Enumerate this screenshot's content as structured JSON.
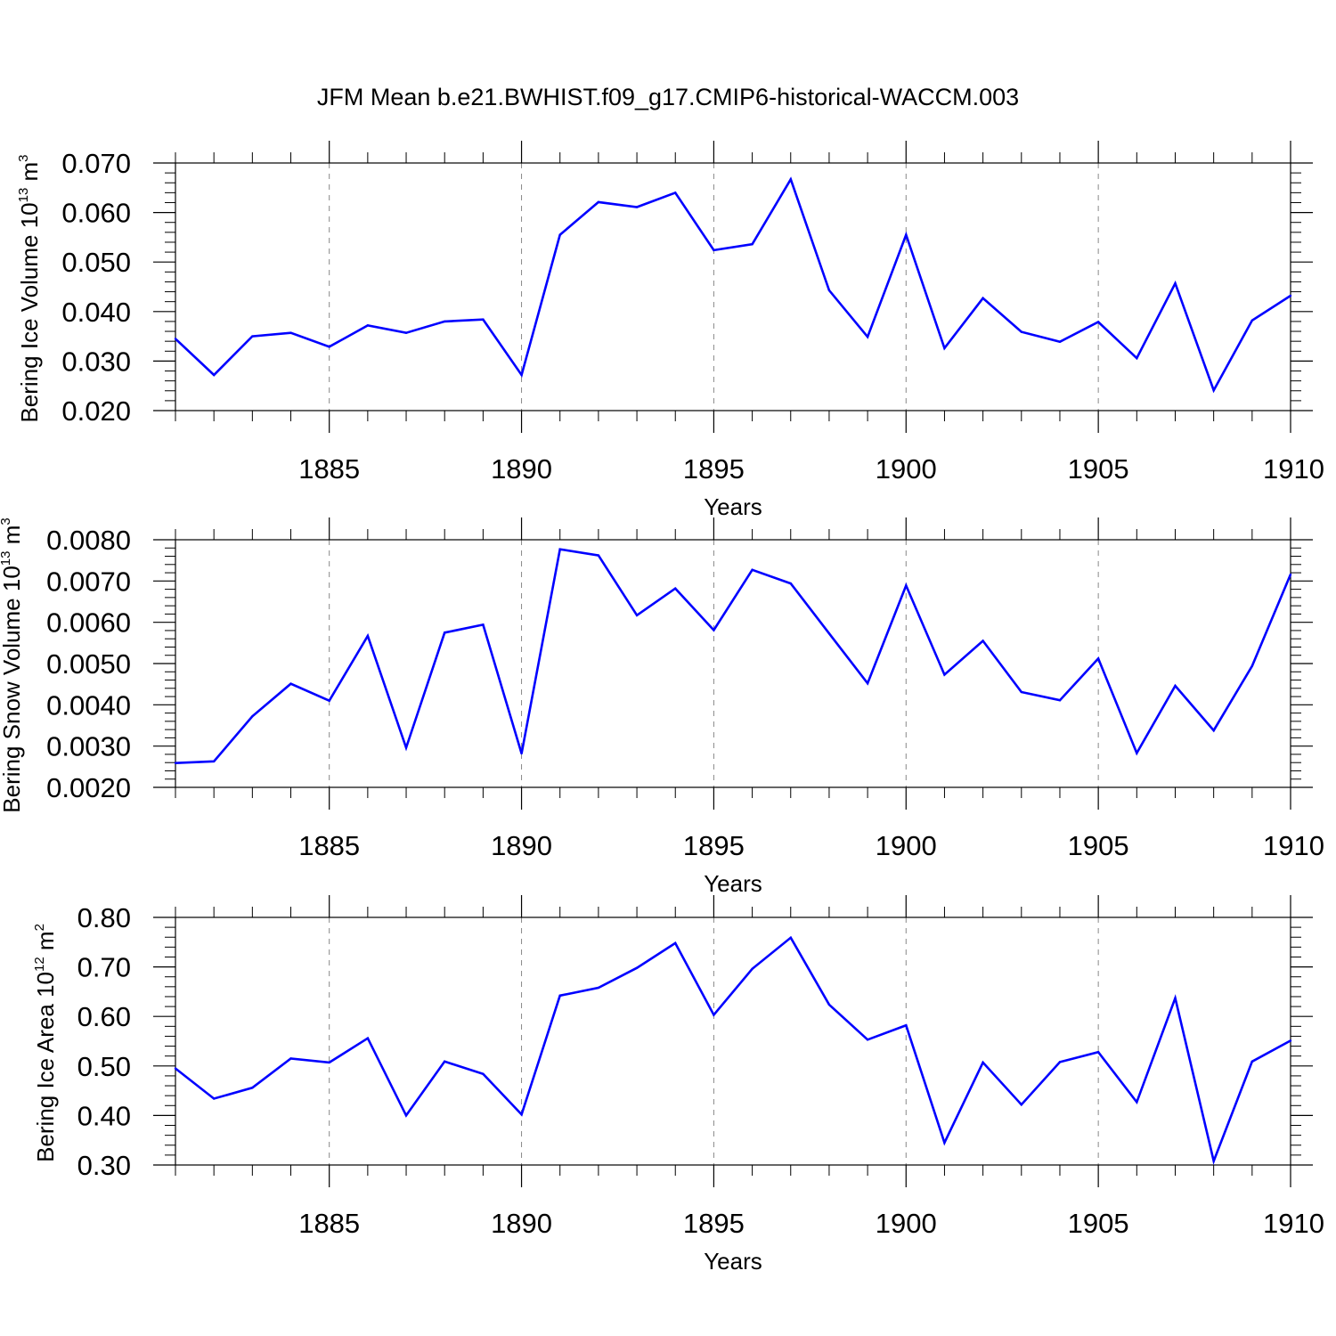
{
  "title": "JFM Mean b.e21.BWHIST.f09_g17.CMIP6-historical-WACCM.003",
  "colors": {
    "line": "#0000ff",
    "axis": "#000000",
    "grid": "#888888"
  },
  "chart_data": [
    {
      "type": "line",
      "name": "ice-volume",
      "ylabel_base": "Bering Ice Volume 10",
      "ylabel_exp": "13",
      "ylabel_unit": " m",
      "ylabel_unit_exp": "3",
      "xlabel": "Years",
      "x": [
        1881,
        1882,
        1883,
        1884,
        1885,
        1886,
        1887,
        1888,
        1889,
        1890,
        1891,
        1892,
        1893,
        1894,
        1895,
        1896,
        1897,
        1898,
        1899,
        1900,
        1901,
        1902,
        1903,
        1904,
        1905,
        1906,
        1907,
        1908,
        1909,
        1910
      ],
      "values": [
        0.0345,
        0.0272,
        0.035,
        0.0357,
        0.0329,
        0.0372,
        0.0357,
        0.038,
        0.0384,
        0.0272,
        0.0555,
        0.0621,
        0.0611,
        0.064,
        0.0524,
        0.0536,
        0.0667,
        0.0443,
        0.0349,
        0.0555,
        0.0326,
        0.0427,
        0.0359,
        0.0339,
        0.0379,
        0.0306,
        0.0457,
        0.0241,
        0.0382,
        0.0432
      ],
      "xlim": [
        1881,
        1910
      ],
      "ylim": [
        0.02,
        0.07
      ],
      "yticks": [
        0.02,
        0.03,
        0.04,
        0.05,
        0.06,
        0.07
      ],
      "ytick_labels": [
        "0.020",
        "0.030",
        "0.040",
        "0.050",
        "0.060",
        "0.070"
      ],
      "xticks": [
        1885,
        1890,
        1895,
        1900,
        1905,
        1910
      ],
      "xtick_labels": [
        "1885",
        "1890",
        "1895",
        "1900",
        "1905",
        "1910"
      ]
    },
    {
      "type": "line",
      "name": "snow-volume",
      "ylabel_base": "Bering Snow Volume 10",
      "ylabel_exp": "13",
      "ylabel_unit": " m",
      "ylabel_unit_exp": "3",
      "xlabel": "Years",
      "x": [
        1881,
        1882,
        1883,
        1884,
        1885,
        1886,
        1887,
        1888,
        1889,
        1890,
        1891,
        1892,
        1893,
        1894,
        1895,
        1896,
        1897,
        1898,
        1899,
        1900,
        1901,
        1902,
        1903,
        1904,
        1905,
        1906,
        1907,
        1908,
        1909,
        1910
      ],
      "values": [
        0.00259,
        0.00263,
        0.00372,
        0.00451,
        0.0041,
        0.00567,
        0.00296,
        0.00575,
        0.00594,
        0.00282,
        0.00777,
        0.00762,
        0.00617,
        0.00682,
        0.00581,
        0.00727,
        0.00694,
        0.00573,
        0.00452,
        0.00689,
        0.00473,
        0.00555,
        0.00431,
        0.00411,
        0.00512,
        0.00283,
        0.00446,
        0.00338,
        0.00494,
        0.00716
      ],
      "xlim": [
        1881,
        1910
      ],
      "ylim": [
        0.002,
        0.008
      ],
      "yticks": [
        0.002,
        0.003,
        0.004,
        0.005,
        0.006,
        0.007,
        0.008
      ],
      "ytick_labels": [
        "0.0020",
        "0.0030",
        "0.0040",
        "0.0050",
        "0.0060",
        "0.0070",
        "0.0080"
      ],
      "xticks": [
        1885,
        1890,
        1895,
        1900,
        1905,
        1910
      ],
      "xtick_labels": [
        "1885",
        "1890",
        "1895",
        "1900",
        "1905",
        "1910"
      ]
    },
    {
      "type": "line",
      "name": "ice-area",
      "ylabel_base": "Bering Ice Area 10",
      "ylabel_exp": "12",
      "ylabel_unit": " m",
      "ylabel_unit_exp": "2",
      "xlabel": "Years",
      "x": [
        1881,
        1882,
        1883,
        1884,
        1885,
        1886,
        1887,
        1888,
        1889,
        1890,
        1891,
        1892,
        1893,
        1894,
        1895,
        1896,
        1897,
        1898,
        1899,
        1900,
        1901,
        1902,
        1903,
        1904,
        1905,
        1906,
        1907,
        1908,
        1909,
        1910
      ],
      "values": [
        0.495,
        0.434,
        0.456,
        0.515,
        0.507,
        0.556,
        0.4,
        0.509,
        0.484,
        0.402,
        0.642,
        0.658,
        0.698,
        0.748,
        0.603,
        0.696,
        0.759,
        0.624,
        0.553,
        0.582,
        0.345,
        0.507,
        0.422,
        0.508,
        0.528,
        0.427,
        0.637,
        0.308,
        0.509,
        0.551
      ],
      "xlim": [
        1881,
        1910
      ],
      "ylim": [
        0.3,
        0.8
      ],
      "yticks": [
        0.3,
        0.4,
        0.5,
        0.6,
        0.7,
        0.8
      ],
      "ytick_labels": [
        "0.30",
        "0.40",
        "0.50",
        "0.60",
        "0.70",
        "0.80"
      ],
      "xticks": [
        1885,
        1890,
        1895,
        1900,
        1905,
        1910
      ],
      "xtick_labels": [
        "1885",
        "1890",
        "1895",
        "1900",
        "1905",
        "1910"
      ]
    }
  ]
}
